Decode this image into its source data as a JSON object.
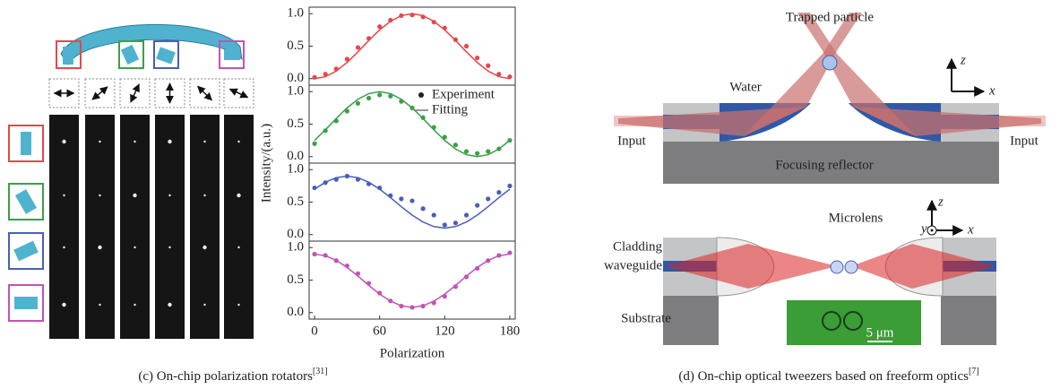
{
  "chart_data": [
    {
      "type": "scatter",
      "xlim": [
        -5,
        185
      ],
      "ylim": [
        -0.1,
        1.1
      ],
      "yticks": [
        {
          "value": 0,
          "label": "0.0"
        },
        {
          "value": 0.5,
          "label": "0.5"
        },
        {
          "value": 1,
          "label": "1.0"
        }
      ],
      "x": [
        0,
        10,
        20,
        30,
        40,
        50,
        60,
        70,
        80,
        90,
        100,
        110,
        120,
        130,
        140,
        150,
        160,
        170,
        180
      ],
      "series": [
        {
          "type": "scatter",
          "color": "#e5474b",
          "values": [
            0.02,
            0.07,
            0.15,
            0.3,
            0.48,
            0.62,
            0.8,
            0.9,
            0.97,
            0.98,
            0.95,
            0.87,
            0.78,
            0.6,
            0.5,
            0.32,
            0.2,
            0.07,
            0.03
          ]
        },
        {
          "type": "line",
          "color": "#e5474b",
          "values": [
            0,
            0.03,
            0.117,
            0.25,
            0.413,
            0.587,
            0.75,
            0.883,
            0.97,
            1,
            0.97,
            0.883,
            0.75,
            0.587,
            0.413,
            0.25,
            0.117,
            0.03,
            0
          ]
        }
      ]
    },
    {
      "type": "scatter",
      "xlim": [
        -5,
        185
      ],
      "ylim": [
        -0.1,
        1.1
      ],
      "legend": true,
      "yticks": [
        {
          "value": 0,
          "label": "0.0"
        },
        {
          "value": 0.5,
          "label": "0.5"
        },
        {
          "value": 1,
          "label": "1.0"
        }
      ],
      "x": [
        0,
        10,
        20,
        30,
        40,
        50,
        60,
        70,
        80,
        90,
        100,
        110,
        120,
        130,
        140,
        150,
        160,
        170,
        180
      ],
      "series": [
        {
          "name": "Experiment",
          "type": "scatter",
          "color": "#3aa04a",
          "values": [
            0.2,
            0.4,
            0.55,
            0.7,
            0.82,
            0.9,
            0.95,
            0.93,
            0.85,
            0.75,
            0.6,
            0.45,
            0.3,
            0.18,
            0.08,
            0.05,
            0.08,
            0.12,
            0.25
          ]
        },
        {
          "name": "Fitting",
          "type": "line",
          "color": "#3aa04a",
          "values": [
            0.25,
            0.413,
            0.587,
            0.75,
            0.883,
            0.97,
            1,
            0.97,
            0.883,
            0.75,
            0.587,
            0.413,
            0.25,
            0.117,
            0.03,
            0,
            0.03,
            0.117,
            0.25
          ]
        }
      ]
    },
    {
      "type": "scatter",
      "xlim": [
        -5,
        185
      ],
      "ylim": [
        -0.1,
        1.1
      ],
      "yticks": [
        {
          "value": 0,
          "label": "0.0"
        },
        {
          "value": 0.5,
          "label": "0.5"
        },
        {
          "value": 1,
          "label": "1.0"
        }
      ],
      "x": [
        0,
        10,
        20,
        30,
        40,
        50,
        60,
        70,
        80,
        90,
        100,
        110,
        120,
        130,
        140,
        150,
        160,
        170,
        180
      ],
      "series": [
        {
          "type": "scatter",
          "color": "#4a5fb8",
          "values": [
            0.72,
            0.8,
            0.85,
            0.9,
            0.85,
            0.78,
            0.72,
            0.6,
            0.55,
            0.52,
            0.4,
            0.3,
            0.15,
            0.18,
            0.3,
            0.45,
            0.55,
            0.65,
            0.75
          ]
        },
        {
          "type": "line",
          "color": "#4a5fb8",
          "values": [
            0.7,
            0.806,
            0.876,
            0.9,
            0.876,
            0.806,
            0.7,
            0.57,
            0.43,
            0.3,
            0.194,
            0.124,
            0.1,
            0.124,
            0.194,
            0.3,
            0.43,
            0.57,
            0.7
          ]
        }
      ]
    },
    {
      "type": "scatter",
      "xlim": [
        -5,
        185
      ],
      "ylim": [
        -0.1,
        1.1
      ],
      "xticks": [
        0,
        60,
        120,
        180
      ],
      "yticks": [
        {
          "value": 0,
          "label": "0.0"
        },
        {
          "value": 0.5,
          "label": "0.5"
        },
        {
          "value": 1,
          "label": "1.0"
        }
      ],
      "x": [
        0,
        10,
        20,
        30,
        40,
        50,
        60,
        70,
        80,
        90,
        100,
        110,
        120,
        130,
        140,
        150,
        160,
        170,
        180
      ],
      "series": [
        {
          "type": "scatter",
          "color": "#c054b5",
          "values": [
            0.9,
            0.88,
            0.8,
            0.72,
            0.6,
            0.45,
            0.3,
            0.18,
            0.1,
            0.08,
            0.1,
            0.15,
            0.25,
            0.4,
            0.55,
            0.68,
            0.8,
            0.88,
            0.92
          ]
        },
        {
          "type": "line",
          "color": "#c054b5",
          "values": [
            0.9,
            0.875,
            0.804,
            0.695,
            0.561,
            0.419,
            0.285,
            0.176,
            0.105,
            0.08,
            0.105,
            0.176,
            0.285,
            0.419,
            0.561,
            0.695,
            0.804,
            0.875,
            0.9
          ]
        }
      ]
    }
  ],
  "figure_c": {
    "ylabel": "Intensity/(a.u.)",
    "xlabel": "Polarization",
    "caption": "(c) On-chip polarization rotators",
    "caption_ref": "[31]"
  },
  "figure_d": {
    "trapped": "Trapped particle",
    "water": "Water",
    "input_left": "Input",
    "input_right": "Input",
    "reflector": "Focusing reflector",
    "axis_z1": "z",
    "axis_x1": "x",
    "microlens": "Microlens",
    "cladding": [
      "Cladding",
      "waveguide"
    ],
    "substrate": "Substrate",
    "scale": "5 μm",
    "axis_y2": "y",
    "axis_z2": "z",
    "axis_x2": "x",
    "caption": "(d) On-chip optical tweezers based on freeform optics",
    "caption_ref": "[7]"
  }
}
